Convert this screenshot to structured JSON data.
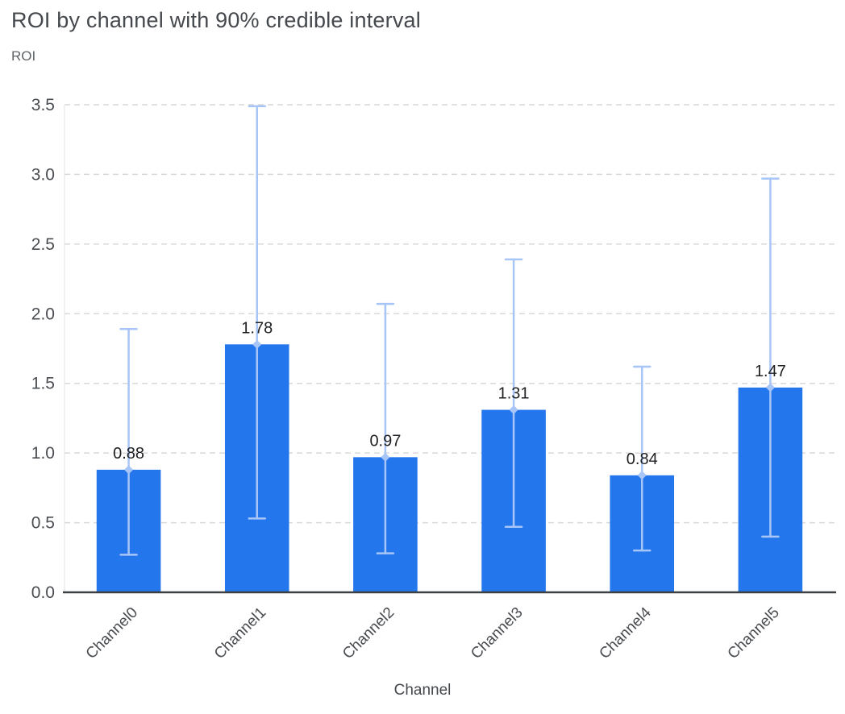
{
  "chart_data": {
    "type": "bar",
    "title": "ROI by channel with 90% credible interval",
    "ylabel": "ROI",
    "xlabel": "Channel",
    "categories": [
      "Channel0",
      "Channel1",
      "Channel2",
      "Channel3",
      "Channel4",
      "Channel5"
    ],
    "values": [
      0.88,
      1.78,
      0.97,
      1.31,
      0.84,
      1.47
    ],
    "value_labels": [
      "0.88",
      "1.78",
      "0.97",
      "1.31",
      "0.84",
      "1.47"
    ],
    "error_low": [
      0.27,
      0.53,
      0.28,
      0.47,
      0.3,
      0.4
    ],
    "error_high": [
      1.89,
      3.49,
      2.07,
      2.39,
      1.62,
      2.97
    ],
    "ylim": [
      0,
      3.5
    ],
    "yticks": [
      0.0,
      0.5,
      1.0,
      1.5,
      2.0,
      2.5,
      3.0,
      3.5
    ],
    "ytick_labels": [
      "0.0",
      "0.5",
      "1.0",
      "1.5",
      "2.0",
      "2.5",
      "3.0",
      "3.5"
    ],
    "grid": true,
    "legend": "none",
    "colors": {
      "bar": "#2476ed",
      "error_bar": "#a8c5f8",
      "value_label": "#202124",
      "axis_text": "#4a4d51",
      "grid_line": "#d9d9d9",
      "axis_line": "#3c4043",
      "title": "#45494e",
      "background": "#ffffff"
    }
  }
}
